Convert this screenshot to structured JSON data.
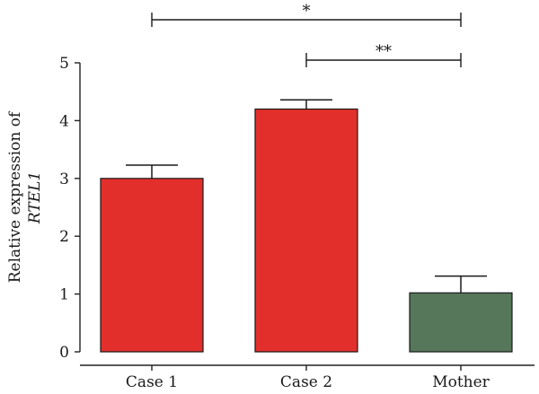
{
  "chart_data": {
    "type": "bar",
    "categories": [
      "Case 1",
      "Case 2",
      "Mother"
    ],
    "values": [
      3.0,
      4.2,
      1.02
    ],
    "errors": [
      0.23,
      0.16,
      0.29
    ],
    "colors": [
      "#e32f2b",
      "#e32f2b",
      "#56775a"
    ],
    "ylabel_line1": "Relative expression of",
    "ylabel_line2": "RTEL1",
    "ylim": [
      0,
      5
    ],
    "yticks": [
      0,
      1,
      2,
      3,
      4,
      5
    ],
    "significance": [
      {
        "from": 0,
        "to": 2,
        "label": "*"
      },
      {
        "from": 1,
        "to": 2,
        "label": "**"
      }
    ]
  }
}
